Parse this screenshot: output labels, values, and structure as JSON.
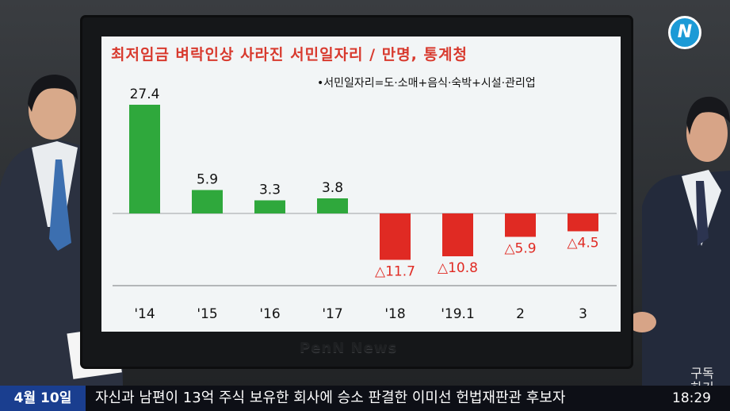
{
  "broadcast": {
    "logo_text": "N",
    "watermark": "PenN News",
    "ticker_date": "4월 10일",
    "ticker_text": "자신과 남편이 13억 주식 보유한 회사에 승소 판결한 이미선 헌법재판관 후보자",
    "ticker_time": "18:29",
    "subscribe_label": "구독 하기"
  },
  "colors": {
    "positive": "#2fa83c",
    "negative": "#e02a23",
    "title": "#d83a2e"
  },
  "chart_data": {
    "type": "bar",
    "title": "최저임금 벼락인상 사라진 서민일자리 / 만명, 통계청",
    "note": "•서민일자리=도·소매+음식·숙박+시설·관리업",
    "categories": [
      "'14",
      "'15",
      "'16",
      "'17",
      "'18",
      "'19.1",
      "2",
      "3"
    ],
    "values": [
      27.4,
      5.9,
      3.3,
      3.8,
      -11.7,
      -10.8,
      -5.9,
      -4.5
    ],
    "value_labels": [
      "27.4",
      "5.9",
      "3.3",
      "3.8",
      "△11.7",
      "△10.8",
      "△5.9",
      "△4.5"
    ],
    "ylim": [
      -16.4,
      33.6
    ],
    "xlabel": "",
    "ylabel": ""
  }
}
